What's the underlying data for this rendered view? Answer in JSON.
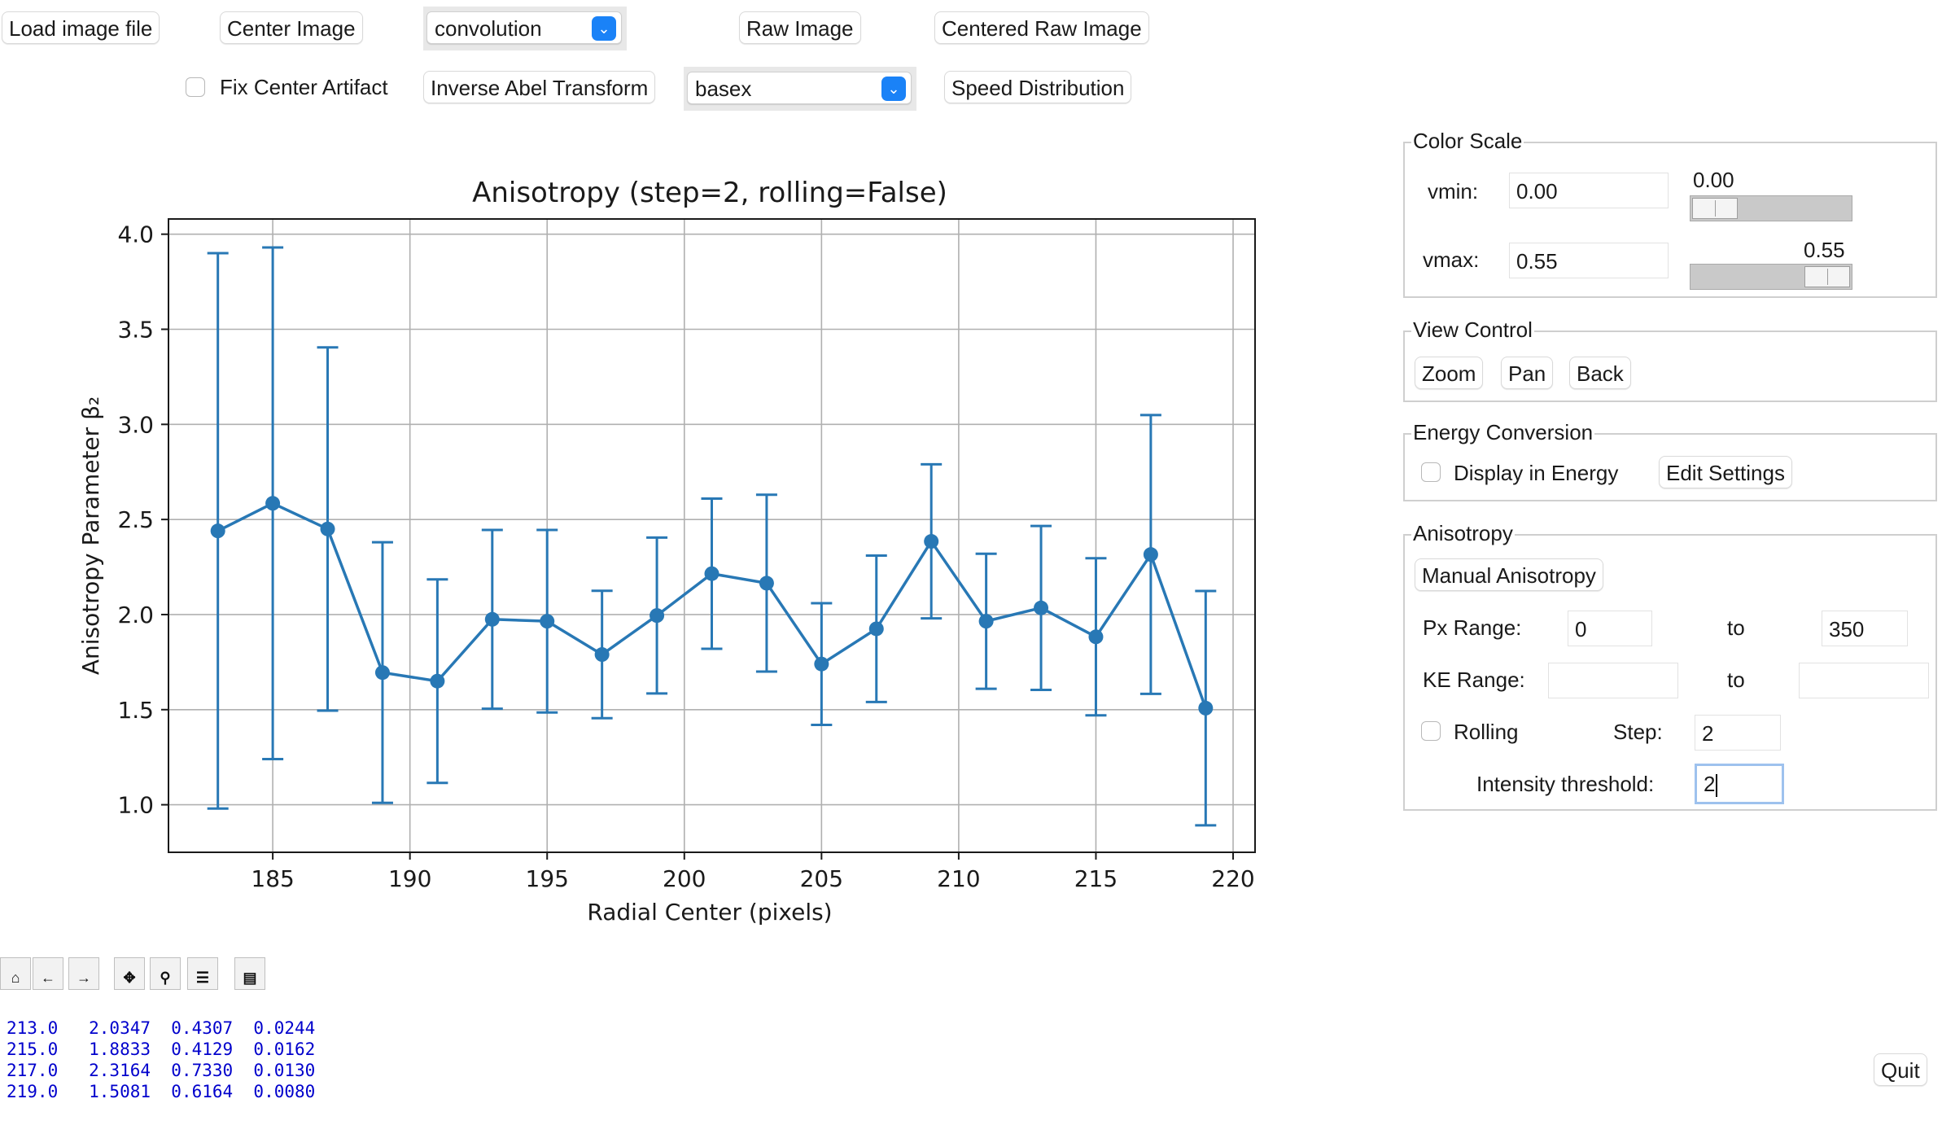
{
  "toolbar_row1": {
    "load_label": "Load image file",
    "center_label": "Center Image",
    "center_method": "convolution",
    "raw_label": "Raw Image",
    "centered_raw_label": "Centered Raw Image"
  },
  "toolbar_row2": {
    "fix_artifact_label": "Fix Center Artifact",
    "fix_artifact_checked": false,
    "inverse_abel_label": "Inverse Abel Transform",
    "abel_method": "basex",
    "speed_label": "Speed Distribution"
  },
  "color_scale": {
    "title": "Color Scale",
    "vmin_label": "vmin:",
    "vmin_value": "0.00",
    "vmin_slider_text": "0.00",
    "vmin_slider_fraction": 0.0,
    "vmax_label": "vmax:",
    "vmax_value": "0.55",
    "vmax_slider_text": "0.55",
    "vmax_slider_fraction": 1.0
  },
  "view_control": {
    "title": "View Control",
    "zoom_label": "Zoom",
    "pan_label": "Pan",
    "back_label": "Back"
  },
  "energy_conversion": {
    "title": "Energy Conversion",
    "display_label": "Display in Energy",
    "display_checked": false,
    "edit_label": "Edit Settings"
  },
  "anisotropy": {
    "title": "Anisotropy",
    "manual_label": "Manual Anisotropy",
    "px_range_label": "Px Range:",
    "px_from": "0",
    "to_label": "to",
    "px_to": "350",
    "ke_range_label": "KE Range:",
    "ke_from": "",
    "ke_to": "",
    "rolling_label": "Rolling",
    "rolling_checked": false,
    "step_label": "Step:",
    "step_value": "2",
    "threshold_label": "Intensity threshold:",
    "threshold_value": "2"
  },
  "plot_toolbar_icons": [
    "home-icon",
    "back-icon",
    "forward-icon",
    "pan-icon",
    "zoom-icon",
    "configure-icon",
    "save-icon"
  ],
  "console": {
    "lines": [
      "213.0   2.0347  0.4307  0.0244",
      "215.0   1.8833  0.4129  0.0162",
      "217.0   2.3164  0.7330  0.0130",
      "219.0   1.5081  0.6164  0.0080"
    ]
  },
  "quit_label": "Quit",
  "chart_data": {
    "type": "line",
    "title": "Anisotropy (step=2, rolling=False)",
    "xlabel": "Radial Center (pixels)",
    "ylabel": "Anisotropy Parameter β₂",
    "xlim": [
      181.2,
      220.8
    ],
    "ylim": [
      0.75,
      4.08
    ],
    "xticks": [
      185,
      190,
      195,
      200,
      205,
      210,
      215,
      220
    ],
    "yticks": [
      1.0,
      1.5,
      2.0,
      2.5,
      3.0,
      3.5,
      4.0
    ],
    "grid": true,
    "color": "#2878b5",
    "x": [
      183,
      185,
      187,
      189,
      191,
      193,
      195,
      197,
      199,
      201,
      203,
      205,
      207,
      209,
      211,
      213,
      215,
      217,
      219
    ],
    "y": [
      2.44,
      2.585,
      2.45,
      1.695,
      1.65,
      1.975,
      1.965,
      1.79,
      1.995,
      2.215,
      2.165,
      1.74,
      1.925,
      2.385,
      1.965,
      2.035,
      1.883,
      2.316,
      1.508
    ],
    "yerr": [
      1.46,
      1.345,
      0.955,
      0.685,
      0.535,
      0.47,
      0.48,
      0.335,
      0.41,
      0.395,
      0.465,
      0.32,
      0.385,
      0.405,
      0.355,
      0.431,
      0.413,
      0.733,
      0.616
    ]
  }
}
